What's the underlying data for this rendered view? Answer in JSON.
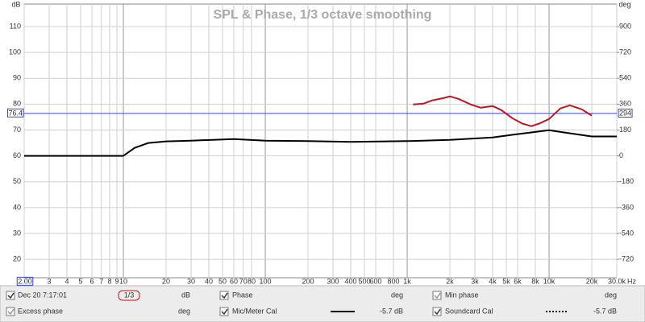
{
  "chart_data": {
    "type": "line",
    "title": "SPL & Phase, 1/3 octave smoothing",
    "y_label": "dB",
    "y2_label": "deg",
    "x_unit": "Hz",
    "log_x": true,
    "grid": true,
    "xlim": [
      2,
      30000
    ],
    "xticks": [
      {
        "value": 2,
        "label": "2.00"
      },
      3,
      4,
      5,
      6,
      7,
      8,
      9,
      10,
      20,
      30,
      40,
      50,
      60,
      70,
      80,
      100,
      200,
      300,
      400,
      500,
      600,
      800,
      {
        "value": 1000,
        "label": "1k"
      },
      {
        "value": 2000,
        "label": "2k"
      },
      {
        "value": 3000,
        "label": "3k"
      },
      {
        "value": 4000,
        "label": "4k"
      },
      {
        "value": 5000,
        "label": "5k"
      },
      {
        "value": 6000,
        "label": "6k"
      },
      {
        "value": 8000,
        "label": "8k"
      },
      {
        "value": 10000,
        "label": "10k"
      },
      {
        "value": 20000,
        "label": "20k"
      },
      {
        "value": 30000,
        "label": "30.0k"
      }
    ],
    "ylim": [
      12.9,
      118.7
    ],
    "yticks": [
      20,
      30,
      40,
      50,
      60,
      70,
      80,
      90,
      100,
      110
    ],
    "y2lim": [
      -847.8,
      1056.6
    ],
    "y2ticks": [
      -720,
      -540,
      -360,
      -180,
      0,
      180,
      360,
      540,
      720,
      900
    ],
    "cursor": {
      "value": 76.4,
      "label": "76.4",
      "y2_value": 294,
      "color": "#3344dd"
    },
    "series": [
      {
        "name": "Dec 20 7:17:01",
        "color": "#000000",
        "x": [
          2,
          10,
          12,
          15,
          20,
          30,
          60,
          100,
          200,
          400,
          1000,
          2000,
          4000,
          6000,
          10000,
          13000,
          20000,
          30000
        ],
        "values": [
          60,
          60,
          63.1,
          65,
          65.6,
          65.9,
          66.5,
          65.9,
          65.7,
          65.4,
          65.7,
          66.2,
          67.1,
          68.4,
          69.9,
          69.0,
          67.5,
          67.5
        ]
      },
      {
        "name": "Phase",
        "color": "#c0141e",
        "axis": "y2",
        "x": [
          1100,
          1300,
          1500,
          1800,
          2000,
          2300,
          2800,
          3300,
          4000,
          4600,
          5500,
          6500,
          7500,
          8500,
          10000,
          12000,
          14000,
          17000,
          20000
        ],
        "values": [
          358,
          363,
          386,
          402,
          414,
          397,
          358,
          335,
          347,
          319,
          263,
          224,
          207,
          224,
          257,
          330,
          352,
          324,
          280
        ]
      }
    ]
  },
  "controls": {
    "smoothing": "1/3",
    "items": [
      {
        "checked": true,
        "label": "Dec 20 7:17:01",
        "unit": "dB",
        "color": "#c0141e"
      },
      {
        "checked": true,
        "label": "Phase",
        "unit": "deg",
        "color": "#c0141e"
      },
      {
        "checked": true,
        "label": "Min phase",
        "unit": "deg",
        "color": "#999999"
      },
      {
        "checked": true,
        "label": "Excess phase",
        "unit": "deg",
        "color": "#999999"
      },
      {
        "checked": true,
        "label": "Mic/Meter Cal",
        "unit": "-5.7 dB",
        "color": "#000000"
      },
      {
        "checked": true,
        "label": "Soundcard Cal",
        "unit": "-5.7 dB",
        "color": "#000000"
      }
    ]
  }
}
